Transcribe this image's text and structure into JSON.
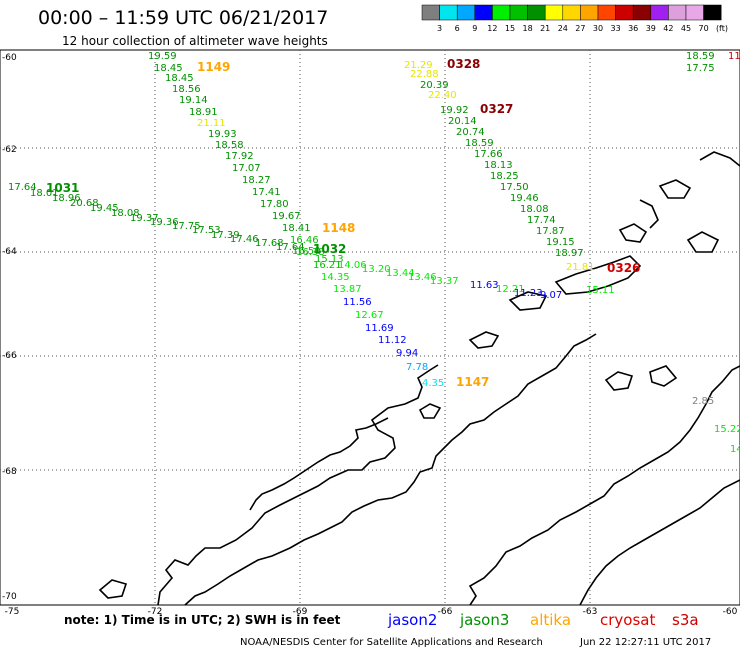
{
  "header": {
    "title": "00:00 – 11:59 UTC 06/21/2017",
    "subtitle": "12 hour collection of altimeter wave heights"
  },
  "colorbar": {
    "labels": [
      "3",
      "6",
      "9",
      "12",
      "15",
      "18",
      "21",
      "24",
      "27",
      "30",
      "33",
      "36",
      "39",
      "42",
      "45",
      "70"
    ],
    "unit": "(ft)",
    "colors": [
      "#7f7f7f",
      "#00e5ee",
      "#00a8ff",
      "#0000ff",
      "#00ee00",
      "#00c000",
      "#009000",
      "#ffff00",
      "#ffd700",
      "#ffa500",
      "#ff4500",
      "#cd0000",
      "#8b0000",
      "#a020f0",
      "#dda0dd",
      "#e8a8e8",
      "#000000"
    ]
  },
  "axes": {
    "lat_labels": [
      "-60",
      "-62",
      "-64",
      "-66",
      "-68",
      "-70"
    ],
    "lon_labels": [
      "-75",
      "-72",
      "-69",
      "-66",
      "-63",
      "-60"
    ]
  },
  "observations": [
    {
      "t": "19.59",
      "c": "#009000"
    },
    {
      "t": "18.45",
      "c": "#009000"
    },
    {
      "t": "18.45",
      "c": "#009000"
    },
    {
      "t": "18.56",
      "c": "#009000"
    },
    {
      "t": "19.14",
      "c": "#009000"
    },
    {
      "t": "18.91",
      "c": "#009000"
    },
    {
      "t": "21.11",
      "c": "#e6e600"
    },
    {
      "t": "19.93",
      "c": "#009000"
    },
    {
      "t": "18.58",
      "c": "#009000"
    },
    {
      "t": "17.92",
      "c": "#009000"
    },
    {
      "t": "17.07",
      "c": "#009000"
    },
    {
      "t": "18.27",
      "c": "#009000"
    },
    {
      "t": "17.41",
      "c": "#009000"
    },
    {
      "t": "17.80",
      "c": "#009000"
    },
    {
      "t": "19.67",
      "c": "#009000"
    },
    {
      "t": "18.41",
      "c": "#009000"
    },
    {
      "t": "16.46",
      "c": "#00c000"
    },
    {
      "t": "16.50",
      "c": "#00c000"
    },
    {
      "t": "16.21",
      "c": "#00c000"
    },
    {
      "t": "14.35",
      "c": "#00ee00"
    },
    {
      "t": "13.87",
      "c": "#00ee00"
    },
    {
      "t": "11.56",
      "c": "#0000ff"
    },
    {
      "t": "12.67",
      "c": "#00ee00"
    },
    {
      "t": "11.69",
      "c": "#0000ff"
    },
    {
      "t": "11.12",
      "c": "#0000ff"
    },
    {
      "t": "9.94",
      "c": "#0000ff"
    },
    {
      "t": "7.78",
      "c": "#00a8ff"
    },
    {
      "t": "4.35",
      "c": "#00e5ee"
    },
    {
      "t": "17.64",
      "c": "#009000"
    },
    {
      "t": "18.01",
      "c": "#009000"
    },
    {
      "t": "18.96",
      "c": "#009000"
    },
    {
      "t": "20.68",
      "c": "#009000"
    },
    {
      "t": "19.45",
      "c": "#009000"
    },
    {
      "t": "18.08",
      "c": "#009000"
    },
    {
      "t": "19.37",
      "c": "#009000"
    },
    {
      "t": "19.36",
      "c": "#009000"
    },
    {
      "t": "17.75",
      "c": "#009000"
    },
    {
      "t": "17.53",
      "c": "#009000"
    },
    {
      "t": "17.39",
      "c": "#009000"
    },
    {
      "t": "17.46",
      "c": "#009000"
    },
    {
      "t": "17.68",
      "c": "#009000"
    },
    {
      "t": "17.64",
      "c": "#009000"
    },
    {
      "t": "16.38",
      "c": "#00c000"
    },
    {
      "t": "15.13",
      "c": "#00c000"
    },
    {
      "t": "14.06",
      "c": "#00ee00"
    },
    {
      "t": "13.20",
      "c": "#00ee00"
    },
    {
      "t": "13.44",
      "c": "#00ee00"
    },
    {
      "t": "13.46",
      "c": "#00ee00"
    },
    {
      "t": "13.37",
      "c": "#00ee00"
    },
    {
      "t": "11.63",
      "c": "#0000ff"
    },
    {
      "t": "12.21",
      "c": "#00ee00"
    },
    {
      "t": "11.23",
      "c": "#0000ff"
    },
    {
      "t": "9.07",
      "c": "#0000ff"
    },
    {
      "t": "15.11",
      "c": "#00ee00"
    },
    {
      "t": "21.29",
      "c": "#e6e600"
    },
    {
      "t": "22.88",
      "c": "#e6e600"
    },
    {
      "t": "20.39",
      "c": "#009000"
    },
    {
      "t": "22.40",
      "c": "#e6e600"
    },
    {
      "t": "19.92",
      "c": "#009000"
    },
    {
      "t": "20.14",
      "c": "#009000"
    },
    {
      "t": "20.74",
      "c": "#009000"
    },
    {
      "t": "18.59",
      "c": "#009000"
    },
    {
      "t": "17.66",
      "c": "#009000"
    },
    {
      "t": "18.13",
      "c": "#009000"
    },
    {
      "t": "18.25",
      "c": "#009000"
    },
    {
      "t": "17.50",
      "c": "#009000"
    },
    {
      "t": "19.46",
      "c": "#009000"
    },
    {
      "t": "18.08",
      "c": "#009000"
    },
    {
      "t": "17.74",
      "c": "#009000"
    },
    {
      "t": "17.87",
      "c": "#009000"
    },
    {
      "t": "19.15",
      "c": "#009000"
    },
    {
      "t": "18.97",
      "c": "#009000"
    },
    {
      "t": "21.81",
      "c": "#e6e600"
    },
    {
      "t": "18.59",
      "c": "#009000"
    },
    {
      "t": "17.75",
      "c": "#009000"
    },
    {
      "t": "2.85",
      "c": "#7f7f7f"
    },
    {
      "t": "15.22",
      "c": "#00ee00"
    },
    {
      "t": "14",
      "c": "#00ee00"
    },
    {
      "t": "11",
      "c": "#cd0000"
    }
  ],
  "pass_times": [
    {
      "t": "1149",
      "c": "#ffa500"
    },
    {
      "t": "1148",
      "c": "#ffa500"
    },
    {
      "t": "1147",
      "c": "#ffa500"
    },
    {
      "t": "1031",
      "c": "#009000"
    },
    {
      "t": "1032",
      "c": "#009000"
    },
    {
      "t": "0328",
      "c": "#8b0000"
    },
    {
      "t": "0327",
      "c": "#8b0000"
    },
    {
      "t": "0326",
      "c": "#cd0000"
    }
  ],
  "note": "note:  1) Time is in UTC;  2) SWH is in feet",
  "satellites": [
    {
      "name": "jason2",
      "c": "#0000ff"
    },
    {
      "name": "jason3",
      "c": "#009000"
    },
    {
      "name": "altika",
      "c": "#ffa500"
    },
    {
      "name": "cryosat",
      "c": "#e00000"
    },
    {
      "name": "s3a",
      "c": "#cd0000"
    }
  ],
  "footer": {
    "agency": "NOAA/NESDIS Center for Satellite Applications and Research",
    "timestamp": "Jun 22 12:27:11 UTC 2017"
  }
}
